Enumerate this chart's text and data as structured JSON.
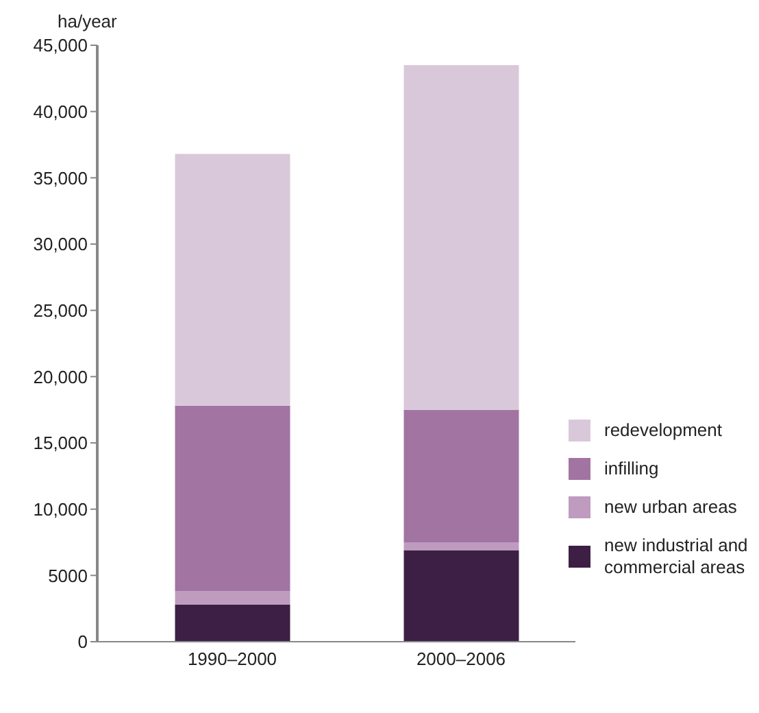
{
  "chart_data": {
    "type": "bar",
    "stacked": true,
    "ylabel": "ha/year",
    "categories": [
      "1990–2000",
      "2000–2006"
    ],
    "series": [
      {
        "name": "new industrial and commercial areas",
        "color": "#3d1f45",
        "values": [
          2800,
          6900
        ]
      },
      {
        "name": "new urban areas",
        "color": "#bf9bbf",
        "values": [
          1000,
          600
        ]
      },
      {
        "name": "infilling",
        "color": "#a274a2",
        "values": [
          14000,
          10000
        ]
      },
      {
        "name": "redevelopment",
        "color": "#d9c8da",
        "values": [
          19000,
          26000
        ]
      }
    ],
    "ylim": [
      0,
      45000
    ],
    "yticks": [
      0,
      5000,
      {
        "value": 10000,
        "label": "10,000"
      },
      {
        "value": 15000,
        "label": "15,000"
      },
      {
        "value": 20000,
        "label": "20,000"
      },
      {
        "value": 25000,
        "label": "25,000"
      },
      {
        "value": 30000,
        "label": "30,000"
      },
      {
        "value": 35000,
        "label": "35,000"
      },
      {
        "value": 40000,
        "label": "40,000"
      },
      {
        "value": 45000,
        "label": "45,000"
      }
    ],
    "grid": false,
    "legend": "right"
  }
}
